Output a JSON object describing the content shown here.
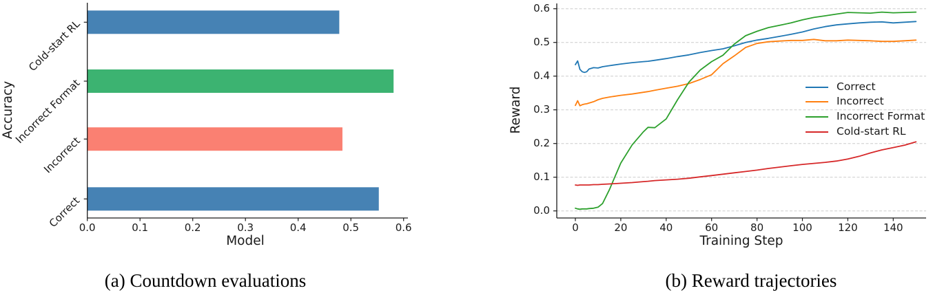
{
  "chart_data": [
    {
      "type": "bar",
      "orientation": "horizontal",
      "title": "(a) Countdown evaluations",
      "xlabel": "Model",
      "ylabel": "Accuracy",
      "categories": [
        "Correct",
        "Incorrect",
        "Incorrect Format",
        "Cold-start RL"
      ],
      "values": [
        0.553,
        0.484,
        0.581,
        0.478
      ],
      "bar_colors": [
        "#4682b4",
        "#fa8072",
        "#3cb371",
        "#4682b4"
      ],
      "xlim": [
        0.0,
        0.6
      ],
      "x_ticks": [
        0.0,
        0.1,
        0.2,
        0.3,
        0.4,
        0.5,
        0.6
      ],
      "x_tick_labels": [
        "0.0",
        "0.1",
        "0.2",
        "0.3",
        "0.4",
        "0.5",
        "0.6"
      ],
      "grid": false
    },
    {
      "type": "line",
      "title": "(b) Reward trajectories",
      "xlabel": "Training Step",
      "ylabel": "Reward",
      "xlim": [
        -8,
        155
      ],
      "ylim": [
        -0.02,
        0.615
      ],
      "x_ticks": [
        0,
        20,
        40,
        60,
        80,
        100,
        120,
        140
      ],
      "x_tick_labels": [
        "0",
        "20",
        "40",
        "60",
        "80",
        "100",
        "120",
        "140"
      ],
      "y_ticks": [
        0.0,
        0.1,
        0.2,
        0.3,
        0.4,
        0.5,
        0.6
      ],
      "y_tick_labels": [
        "0.0",
        "0.1",
        "0.2",
        "0.3",
        "0.4",
        "0.5",
        "0.6"
      ],
      "grid": "horizontal-dashed",
      "grid_color": "#cccccc",
      "legend_position": "center-right",
      "x": [
        0,
        1,
        2,
        3,
        4,
        5,
        6,
        8,
        10,
        12,
        15,
        20,
        25,
        30,
        32,
        35,
        40,
        45,
        50,
        55,
        60,
        65,
        70,
        75,
        80,
        85,
        90,
        95,
        100,
        105,
        110,
        115,
        120,
        125,
        130,
        135,
        140,
        145,
        150
      ],
      "series": [
        {
          "name": "Correct",
          "color": "#1f77b4",
          "values": [
            0.434,
            0.445,
            0.42,
            0.413,
            0.411,
            0.413,
            0.421,
            0.425,
            0.424,
            0.428,
            0.431,
            0.436,
            0.44,
            0.443,
            0.444,
            0.447,
            0.452,
            0.458,
            0.463,
            0.47,
            0.476,
            0.481,
            0.49,
            0.5,
            0.507,
            0.512,
            0.518,
            0.524,
            0.531,
            0.54,
            0.547,
            0.552,
            0.555,
            0.558,
            0.56,
            0.561,
            0.558,
            0.56,
            0.562
          ]
        },
        {
          "name": "Incorrect",
          "color": "#ff7f0e",
          "values": [
            0.313,
            0.327,
            0.312,
            0.315,
            0.317,
            0.318,
            0.32,
            0.324,
            0.33,
            0.334,
            0.338,
            0.343,
            0.347,
            0.352,
            0.354,
            0.358,
            0.364,
            0.37,
            0.378,
            0.39,
            0.404,
            0.437,
            0.46,
            0.485,
            0.497,
            0.502,
            0.504,
            0.506,
            0.506,
            0.509,
            0.505,
            0.505,
            0.507,
            0.506,
            0.505,
            0.503,
            0.503,
            0.505,
            0.507
          ]
        },
        {
          "name": "Incorrect Format",
          "color": "#2ca02c",
          "values": [
            0.008,
            0.006,
            0.005,
            0.006,
            0.006,
            0.006,
            0.007,
            0.008,
            0.011,
            0.022,
            0.063,
            0.142,
            0.196,
            0.235,
            0.248,
            0.247,
            0.273,
            0.33,
            0.382,
            0.418,
            0.443,
            0.462,
            0.495,
            0.52,
            0.533,
            0.544,
            0.551,
            0.558,
            0.567,
            0.574,
            0.579,
            0.584,
            0.589,
            0.588,
            0.587,
            0.59,
            0.588,
            0.589,
            0.59
          ]
        },
        {
          "name": "Cold-start RL",
          "color": "#d62728",
          "values": [
            0.077,
            0.076,
            0.077,
            0.077,
            0.077,
            0.077,
            0.077,
            0.078,
            0.078,
            0.079,
            0.08,
            0.082,
            0.084,
            0.087,
            0.088,
            0.09,
            0.092,
            0.094,
            0.097,
            0.101,
            0.105,
            0.109,
            0.113,
            0.117,
            0.121,
            0.126,
            0.13,
            0.134,
            0.138,
            0.141,
            0.144,
            0.148,
            0.154,
            0.162,
            0.172,
            0.181,
            0.188,
            0.195,
            0.205
          ]
        }
      ]
    }
  ]
}
